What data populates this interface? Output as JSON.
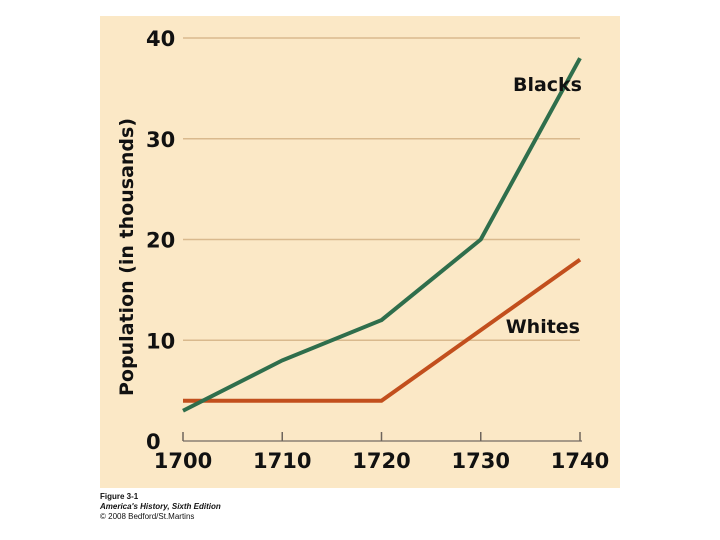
{
  "colors": {
    "panel_background": "#fbe8c6",
    "gridline": "#d9b98d",
    "axis": "#8a7f74",
    "tick": "#6e655c",
    "series_blacks": "#2f6e4c",
    "series_whites": "#c24f1d"
  },
  "caption": {
    "figure": "Figure 3-1",
    "book": "America's History, Sixth Edition",
    "copyright": "© 2008 Bedford/St.Martins"
  },
  "chart_data": {
    "type": "line",
    "title": "",
    "xlabel": "",
    "ylabel": "Population (in thousands)",
    "x": [
      1700,
      1710,
      1720,
      1730,
      1740
    ],
    "xlim": [
      1700,
      1740
    ],
    "ylim": [
      0,
      40
    ],
    "x_ticks": [
      "1700",
      "1710",
      "1720",
      "1730",
      "1740"
    ],
    "y_ticks": [
      "0",
      "10",
      "20",
      "30",
      "40"
    ],
    "grid": true,
    "legend": "labels placed at line ends",
    "series": [
      {
        "name": "Blacks",
        "values": [
          3,
          8,
          12,
          20,
          38
        ]
      },
      {
        "name": "Whites",
        "values": [
          4,
          4,
          4,
          11,
          18
        ]
      }
    ]
  }
}
